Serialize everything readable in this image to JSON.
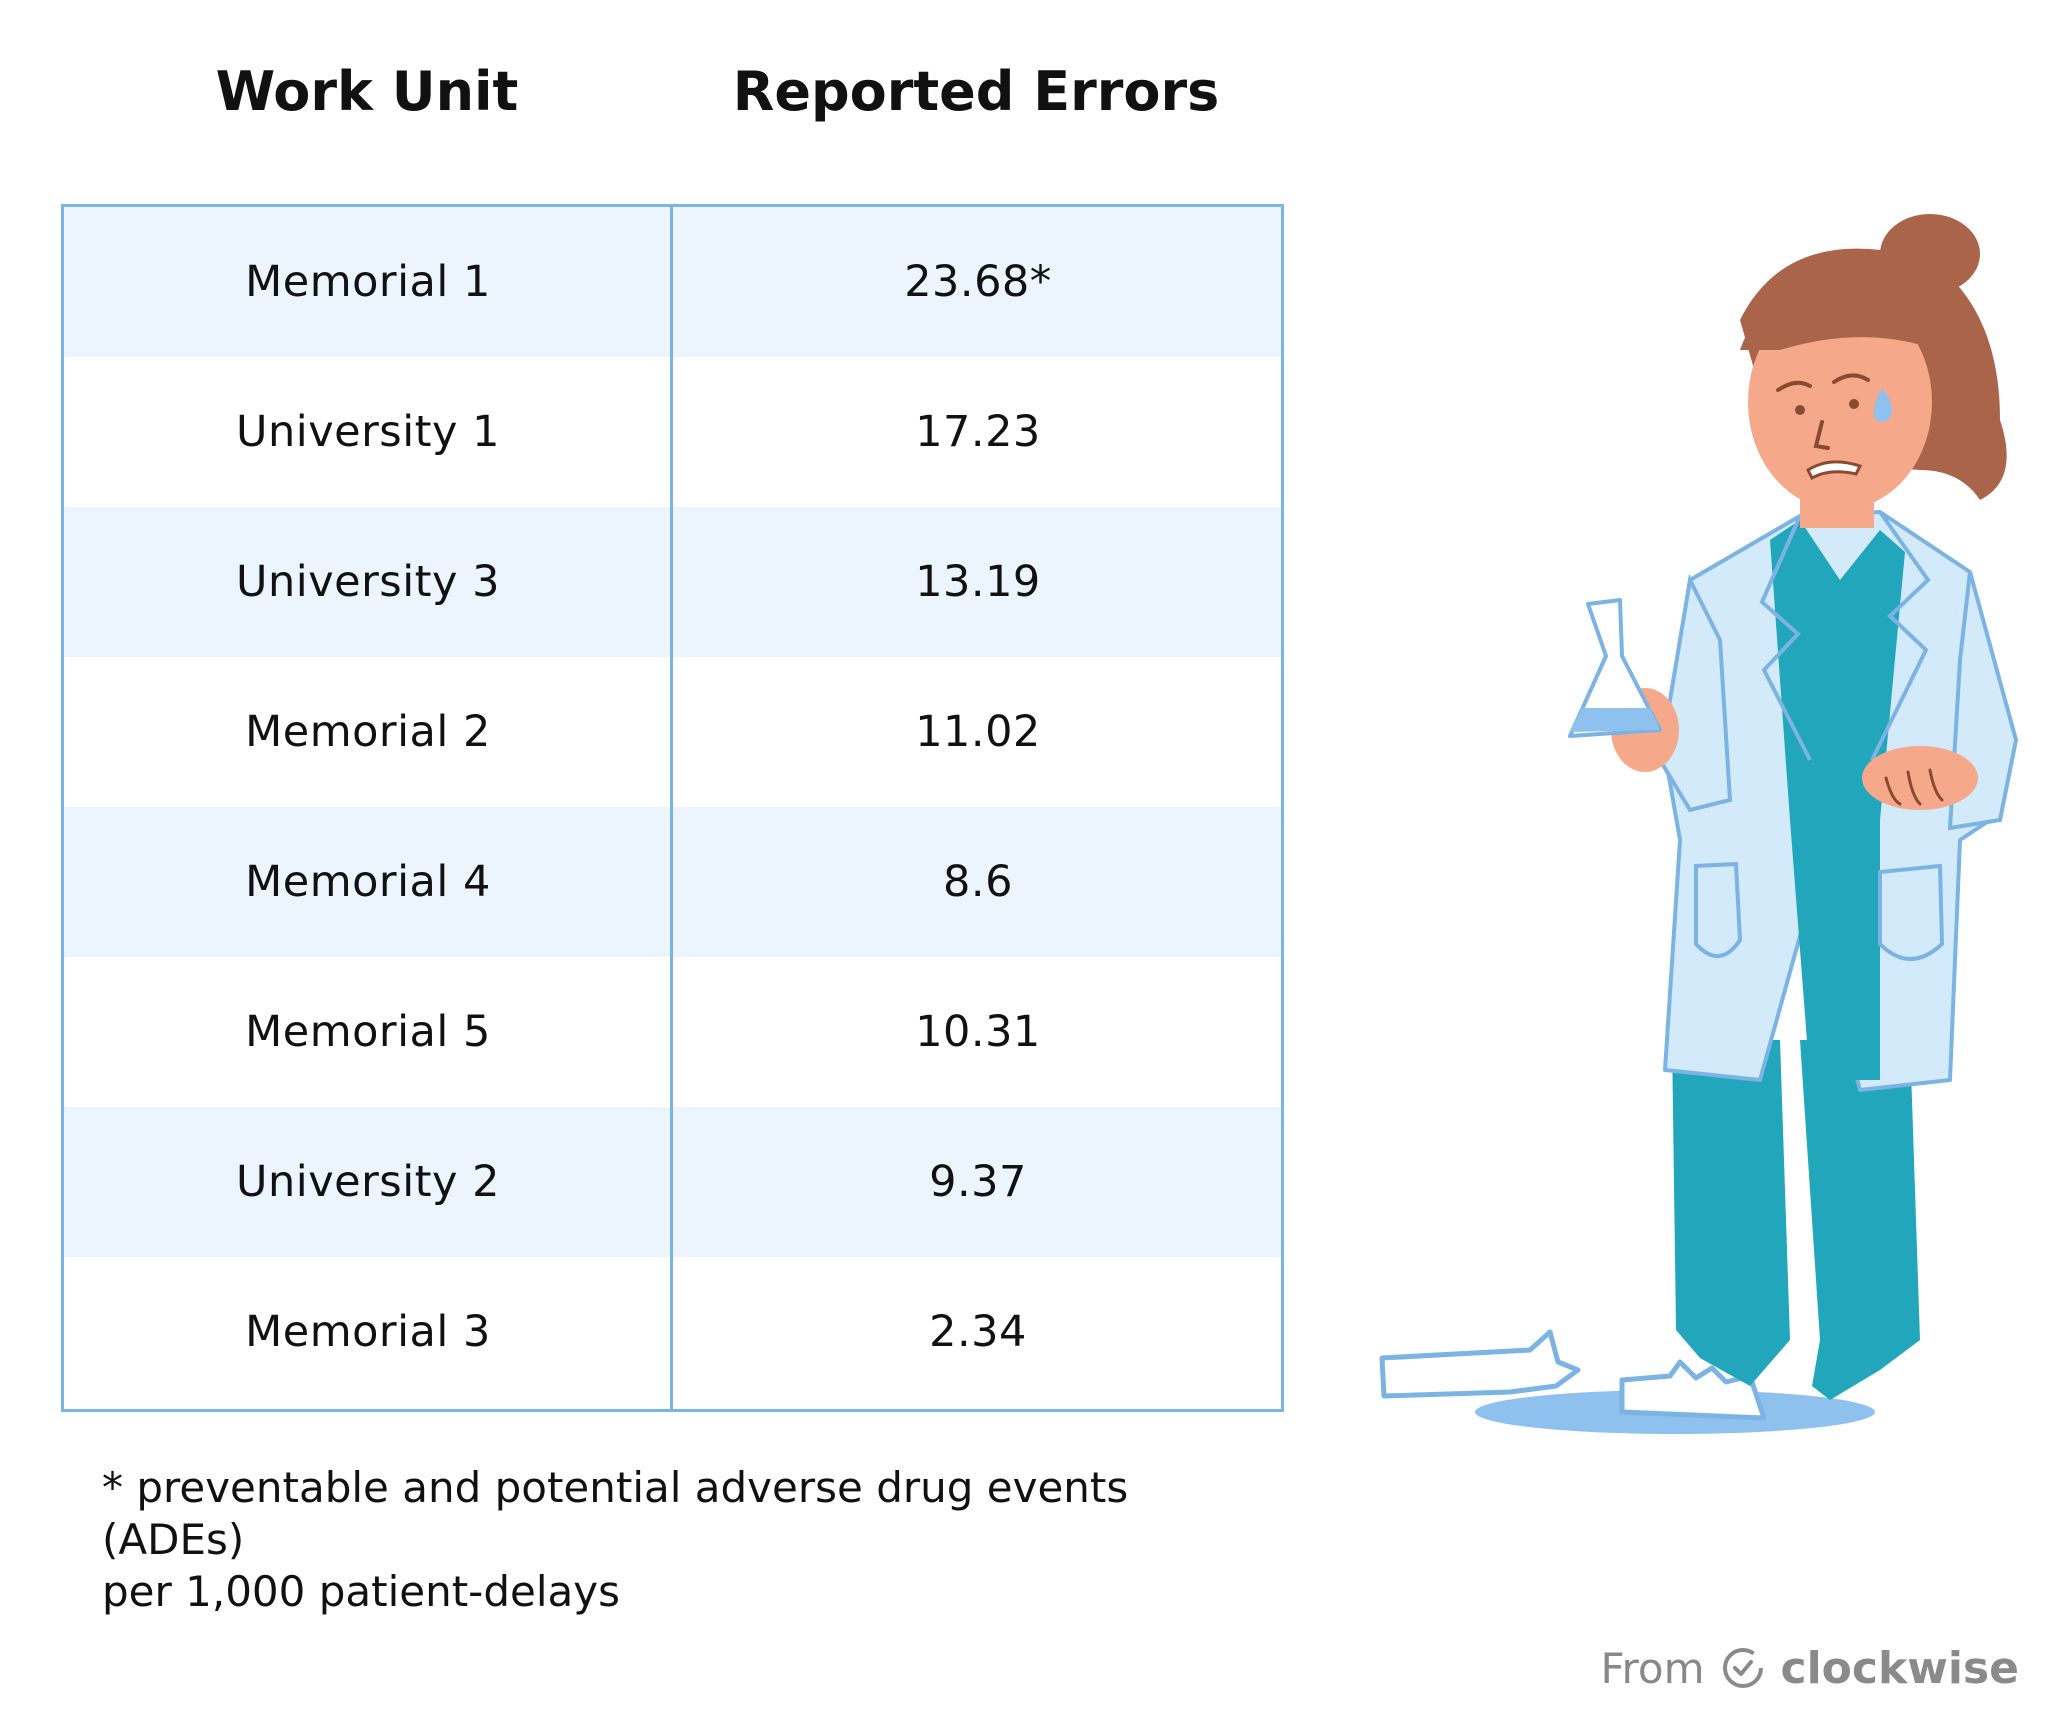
{
  "chart_data": {
    "type": "table",
    "columns": [
      "Work Unit",
      "Reported Errors"
    ],
    "rows": [
      {
        "unit": "Memorial 1",
        "value": "23.68*"
      },
      {
        "unit": "University 1",
        "value": "17.23"
      },
      {
        "unit": "University 3",
        "value": "13.19"
      },
      {
        "unit": "Memorial 2",
        "value": "11.02"
      },
      {
        "unit": "Memorial 4",
        "value": "8.6"
      },
      {
        "unit": "Memorial 5",
        "value": "10.31"
      },
      {
        "unit": "University 2",
        "value": "9.37"
      },
      {
        "unit": "Memorial 3",
        "value": "2.34"
      }
    ]
  },
  "footnote": {
    "line1": "* preventable and potential adverse drug events (ADEs)",
    "line2": "per 1,000 patient-delays"
  },
  "credit": {
    "prefix": "From",
    "brand": "clockwise"
  },
  "colors": {
    "border": "#7bb3e3",
    "row_shade": "#ecf4fe",
    "scrubs": "#22a6bb",
    "coat": "#d3eafb",
    "hair": "#a9644a",
    "skin": "#f5a98a"
  },
  "illustration": {
    "icon": "nurse-dropping-flask-icon"
  }
}
